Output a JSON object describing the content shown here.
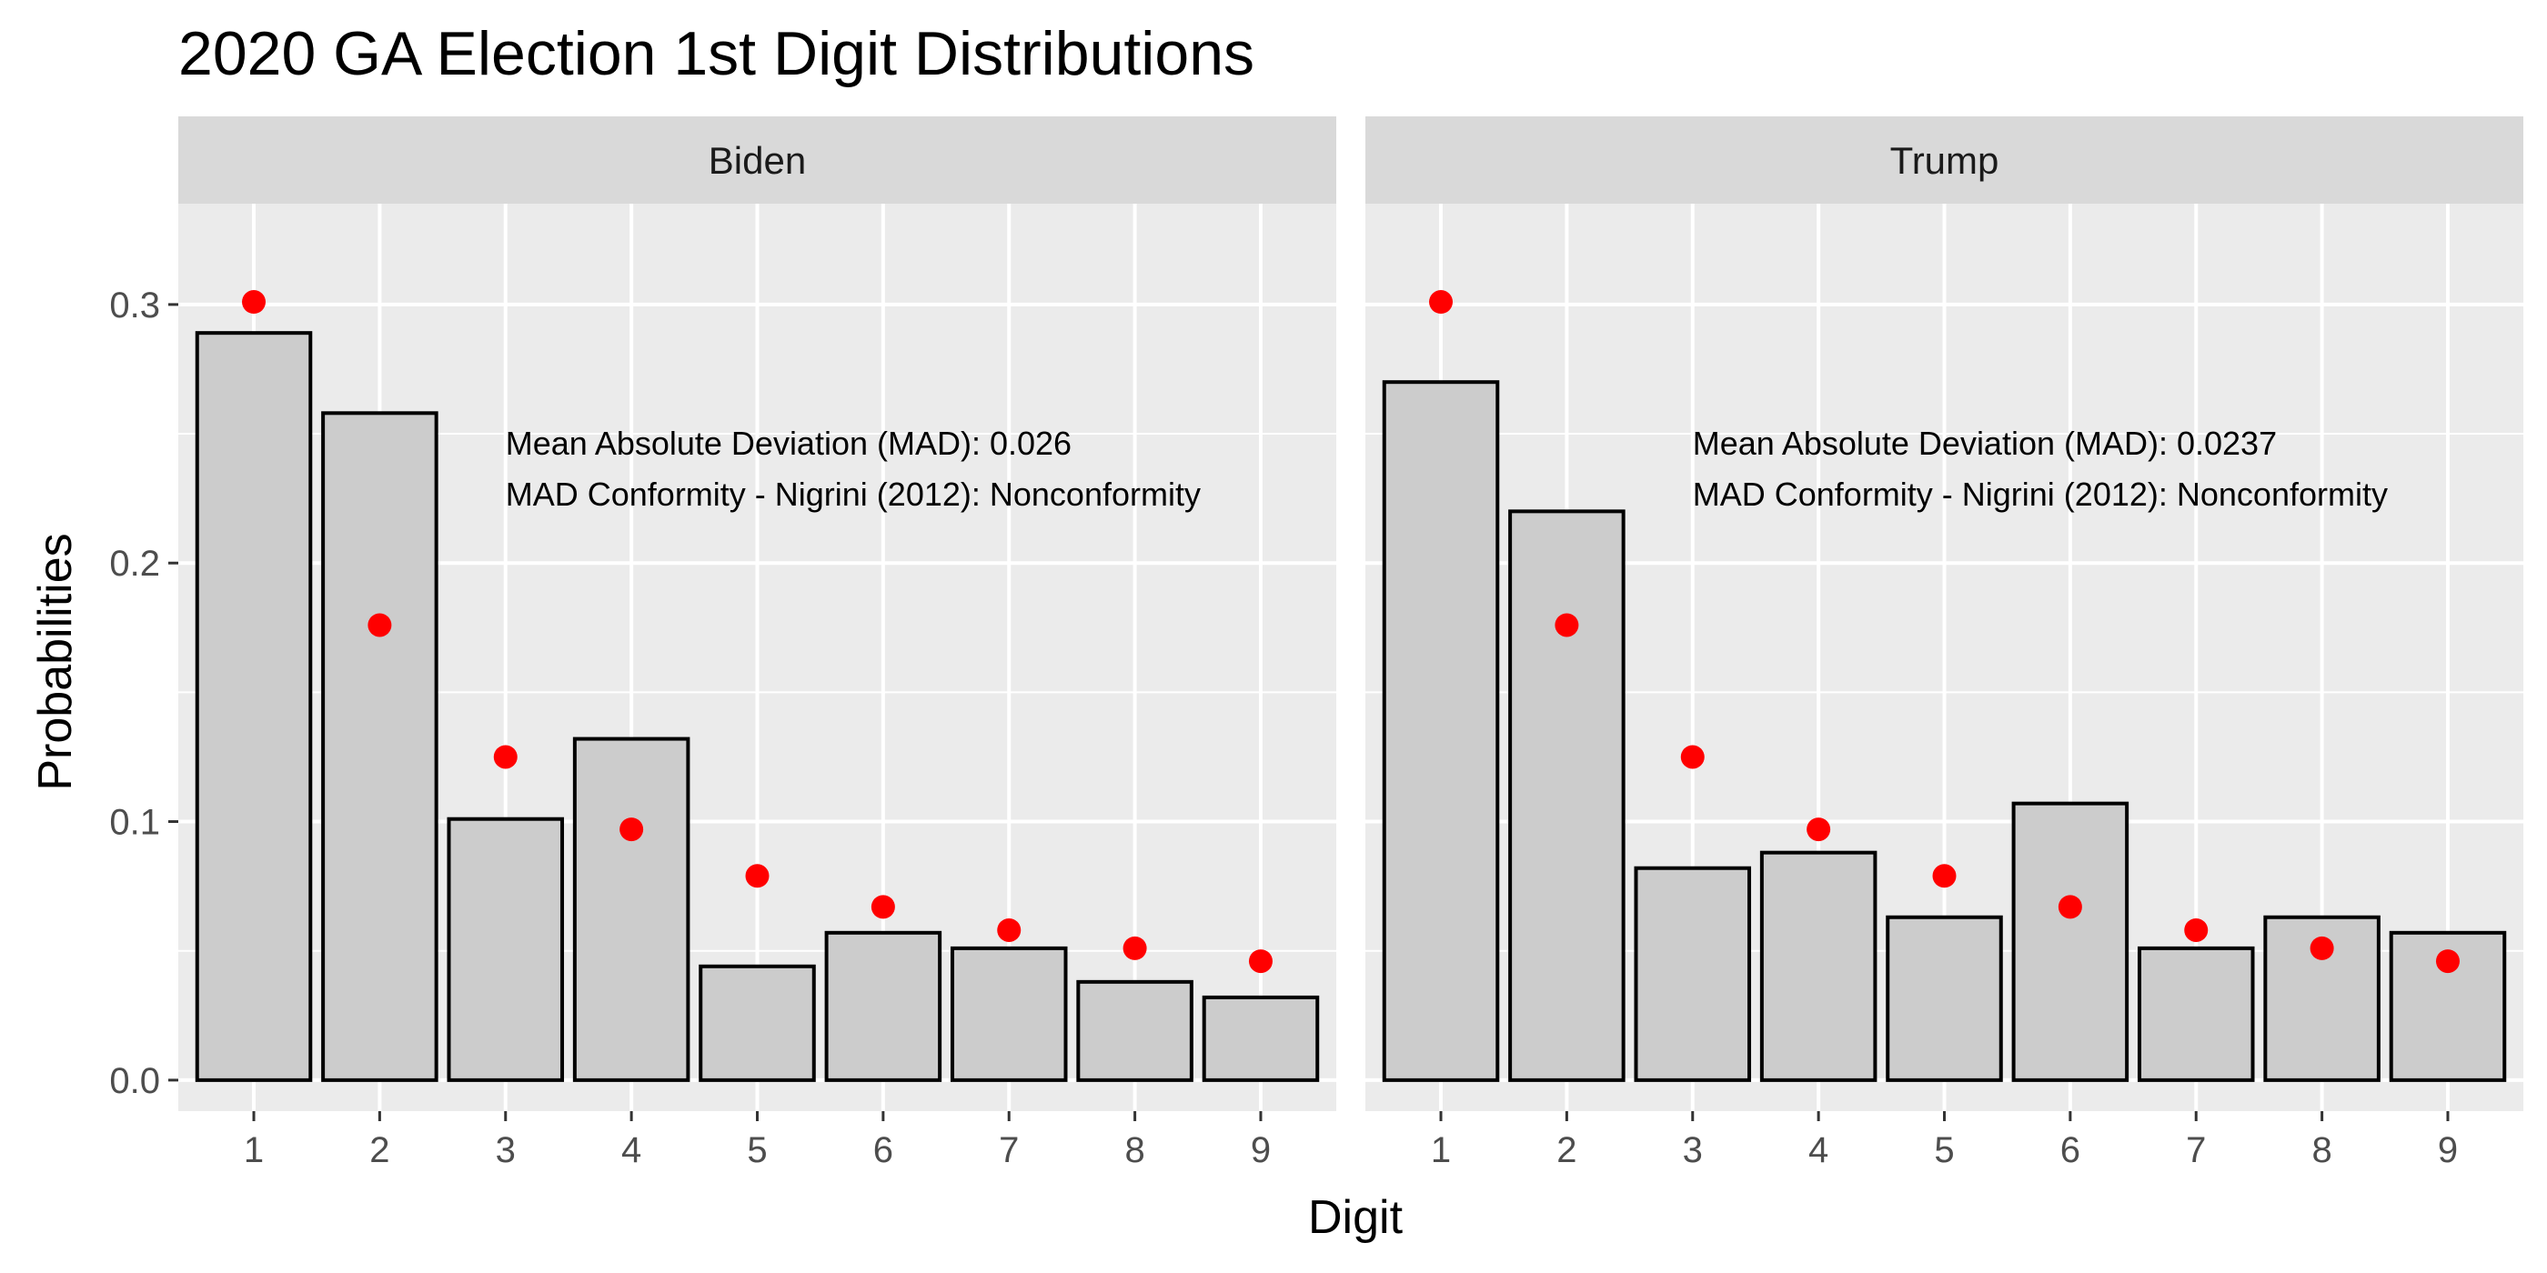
{
  "chart_data": {
    "type": "bar",
    "title": "2020 GA Election 1st Digit Distributions",
    "xlabel": "Digit",
    "ylabel": "Probabilities",
    "categories": [
      "1",
      "2",
      "3",
      "4",
      "5",
      "6",
      "7",
      "8",
      "9"
    ],
    "ylim": [
      -0.012,
      0.339
    ],
    "yticks": [
      0.0,
      0.1,
      0.2,
      0.3
    ],
    "ytick_labels": [
      "0.0",
      "0.1",
      "0.2",
      "0.3"
    ],
    "grid": true,
    "colors": {
      "bar_fill": "#cccccc",
      "bar_stroke": "#000000",
      "point": "#ff0000",
      "panel_bg": "#ebebeb",
      "strip_bg": "#d9d9d9",
      "grid": "#ffffff"
    },
    "reference_series": {
      "values": [
        0.301,
        0.176,
        0.125,
        0.097,
        0.079,
        0.067,
        0.058,
        0.051,
        0.046
      ]
    },
    "facets": [
      {
        "label": "Biden",
        "values": [
          0.289,
          0.258,
          0.101,
          0.132,
          0.044,
          0.057,
          0.051,
          0.038,
          0.032
        ],
        "annotations": [
          "Mean Absolute Deviation (MAD): 0.026",
          "MAD Conformity - Nigrini (2012): Nonconformity"
        ]
      },
      {
        "label": "Trump",
        "values": [
          0.27,
          0.22,
          0.082,
          0.088,
          0.063,
          0.107,
          0.051,
          0.063,
          0.057
        ],
        "annotations": [
          "Mean Absolute Deviation (MAD): 0.0237",
          "MAD Conformity - Nigrini (2012): Nonconformity"
        ]
      }
    ]
  }
}
